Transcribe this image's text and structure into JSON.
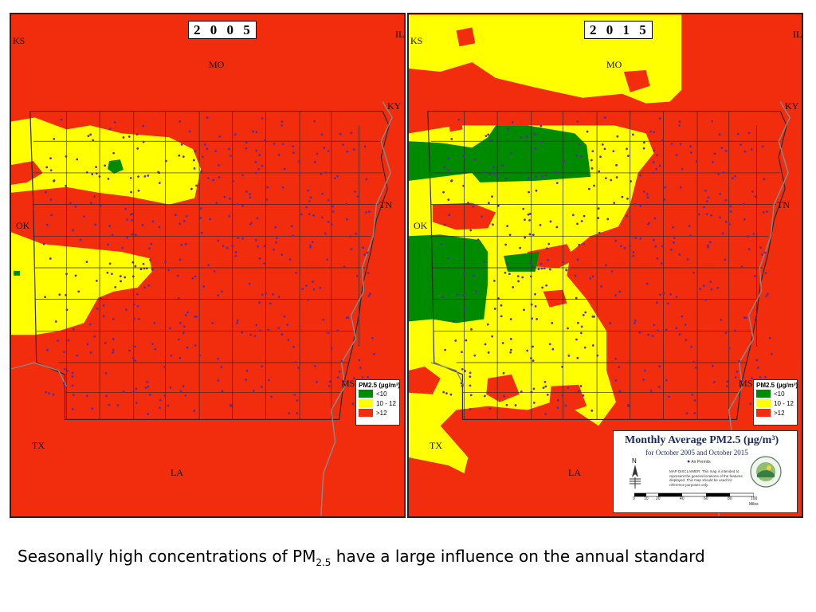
{
  "maps": [
    {
      "year_label": "2 0 0 5",
      "labels": {
        "ks": "KS",
        "il": "IL",
        "mo": "MO",
        "ky": "KY",
        "tn": "TN",
        "ok": "OK",
        "ms": "MS",
        "tx": "TX",
        "la": "LA"
      }
    },
    {
      "year_label": "2 0 1 5",
      "labels": {
        "ks": "KS",
        "il": "IL",
        "mo": "MO",
        "ky": "KY",
        "tn": "TN",
        "ok": "OK",
        "ms": "MS",
        "tx": "TX",
        "la": "LA"
      }
    }
  ],
  "legend": {
    "title": "PM2.5 (µg/m³)",
    "items": [
      {
        "label": "<10",
        "color": "#008a00"
      },
      {
        "label": "10 - 12",
        "color": "#ffff00"
      },
      {
        "label": ">12",
        "color": "#f22d0e"
      }
    ]
  },
  "info": {
    "title": "Monthly Average PM2.5 (µg/m³)",
    "subtitle": "for October 2005 and October 2015",
    "permit_label": "Air Permits",
    "disclaimer": "MAP DISCLAIMER: This map is intended to represent the general locations of the features displayed. This map should be used for reference purposes only.",
    "scale_labels": [
      "0",
      "10",
      "20",
      "40",
      "60",
      "80",
      "100"
    ],
    "scale_unit": "Miles"
  },
  "caption": {
    "before": "Seasonally high concentrations of PM",
    "sub": "2.5",
    "after": " have a large influence on the annual standard"
  },
  "colors": {
    "high": "#f22d0e",
    "mid": "#ffff00",
    "low": "#008a00",
    "permit": "#5a2ca0"
  }
}
